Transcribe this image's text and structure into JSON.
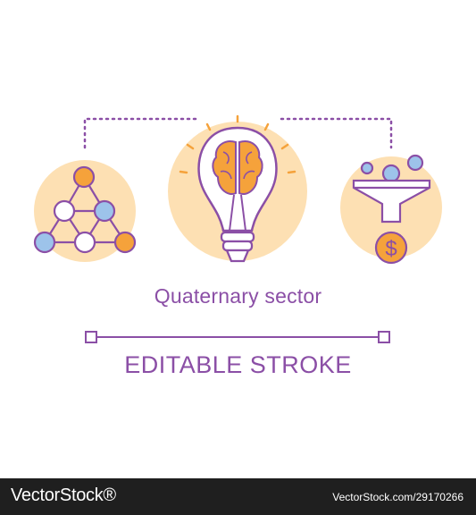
{
  "illustration": {
    "title": "Quaternary sector",
    "subtitle": "EDITABLE STROKE",
    "icons": [
      "network-icon",
      "lightbulb-brain-icon",
      "funnel-dollar-icon"
    ],
    "dollar_symbol": "$"
  },
  "footer": {
    "brand": "VectorStock®",
    "url": "VectorStock.com/29170266"
  },
  "colors": {
    "outline": "#8b4fa6",
    "circle_fill": "#fde0b3",
    "accent_orange": "#f5a23b",
    "accent_blue": "#9dc3ea",
    "footer_bg": "#1f1f1f"
  }
}
